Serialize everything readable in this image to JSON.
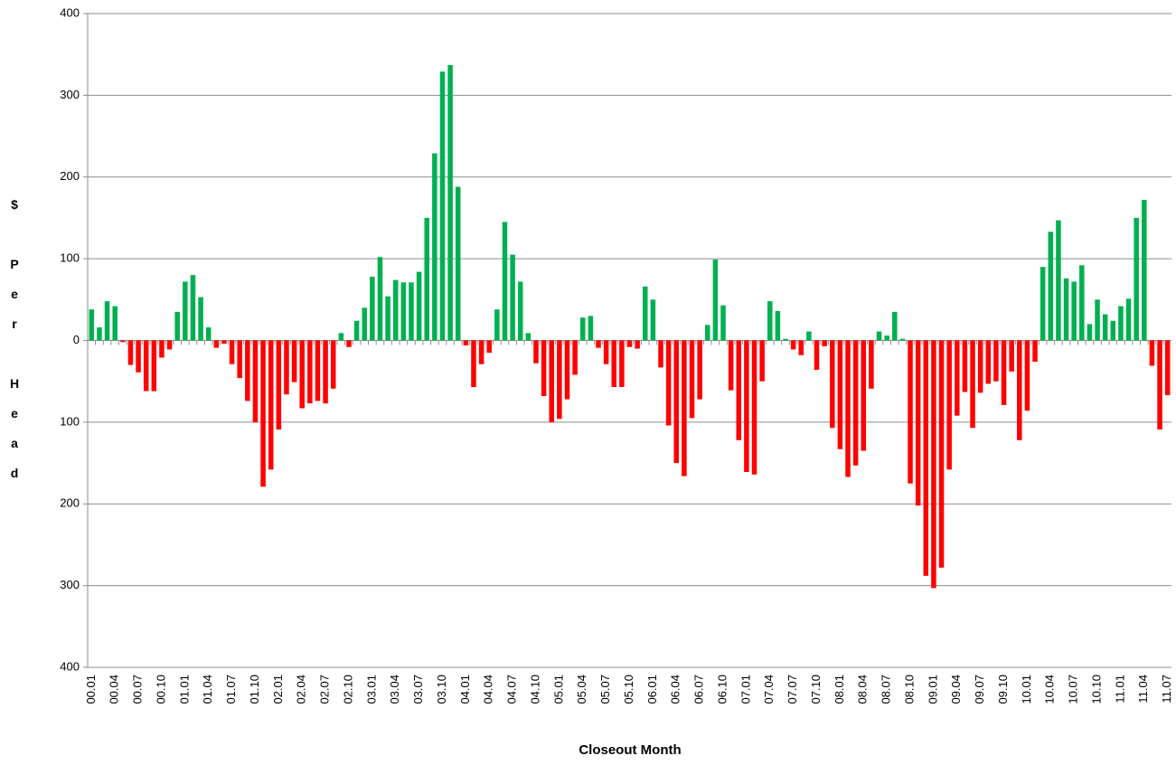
{
  "chart_data": {
    "type": "bar",
    "x_label": "Closeout Month",
    "y_label": "$ Per Head",
    "categories": [
      "00.01",
      null,
      null,
      "00.04",
      null,
      null,
      "00.07",
      null,
      null,
      "00.10",
      null,
      null,
      "01.01",
      null,
      null,
      "01.04",
      null,
      null,
      "01.07",
      null,
      null,
      "01.10",
      null,
      null,
      "02.01",
      null,
      null,
      "02.04",
      null,
      null,
      "02.07",
      null,
      null,
      "02.10",
      null,
      null,
      "03.01",
      null,
      null,
      "03.04",
      null,
      null,
      "03.07",
      null,
      null,
      "03.10",
      null,
      null,
      "04.01",
      null,
      null,
      "04.04",
      null,
      null,
      "04.07",
      null,
      null,
      "04.10",
      null,
      null,
      "05.01",
      null,
      null,
      "05.04",
      null,
      null,
      "05.07",
      null,
      null,
      "05.10",
      null,
      null,
      "06.01",
      null,
      null,
      "06.04",
      null,
      null,
      "06.07",
      null,
      null,
      "06.10",
      null,
      null,
      "07.01",
      null,
      null,
      "07.04",
      null,
      null,
      "07.07",
      null,
      null,
      "07.10",
      null,
      null,
      "08.01",
      null,
      null,
      "08.04",
      null,
      null,
      "08.07",
      null,
      null,
      "08.10",
      null,
      null,
      "09.01",
      null,
      null,
      "09.04",
      null,
      null,
      "09.07",
      null,
      null,
      "09.10",
      null,
      null,
      "10.01",
      null,
      null,
      "10.04",
      null,
      null,
      "10.07",
      null,
      null,
      "10.10",
      null,
      null,
      "11.01",
      null,
      null,
      "11.04",
      null,
      null,
      "11.07"
    ],
    "values": [
      38,
      16,
      48,
      42,
      -2,
      -30,
      -39,
      -62,
      -62,
      -21,
      -11,
      35,
      72,
      80,
      53,
      16,
      -9,
      -4,
      -29,
      -46,
      -74,
      -100,
      -179,
      -158,
      -109,
      -66,
      -51,
      -83,
      -77,
      -74,
      -77,
      -59,
      9,
      -8,
      24,
      40,
      78,
      102,
      54,
      74,
      71,
      71,
      84,
      150,
      229,
      329,
      337,
      188,
      -6,
      -57,
      -29,
      -15,
      38,
      145,
      105,
      72,
      9,
      -28,
      -68,
      -100,
      -96,
      -72,
      -42,
      28,
      30,
      -9,
      -29,
      -57,
      -57,
      -8,
      -10,
      66,
      50,
      -33,
      -104,
      -150,
      -166,
      -95,
      -72,
      19,
      99,
      43,
      -61,
      -122,
      -161,
      -164,
      -50,
      48,
      36,
      2,
      -11,
      -18,
      11,
      -36,
      -7,
      -107,
      -133,
      -167,
      -153,
      -135,
      -59,
      11,
      6,
      35,
      2,
      -175,
      -202,
      -288,
      -303,
      -278,
      -158,
      -92,
      -63,
      -107,
      -64,
      -53,
      -50,
      -79,
      -38,
      -122,
      -86,
      -26,
      90,
      133,
      147,
      76,
      72,
      92,
      20,
      50,
      32,
      24,
      42,
      51,
      150,
      172,
      -31,
      -109,
      -67
    ],
    "positive_color": "#00b050",
    "negative_color": "#ff0000",
    "ylim": [
      -400,
      400
    ],
    "yticks": [
      {
        "value": -400,
        "label": "400"
      },
      {
        "value": -300,
        "label": "300"
      },
      {
        "value": -200,
        "label": "200"
      },
      {
        "value": -100,
        "label": "100"
      },
      0,
      100,
      200,
      300,
      400
    ],
    "grid": true
  }
}
